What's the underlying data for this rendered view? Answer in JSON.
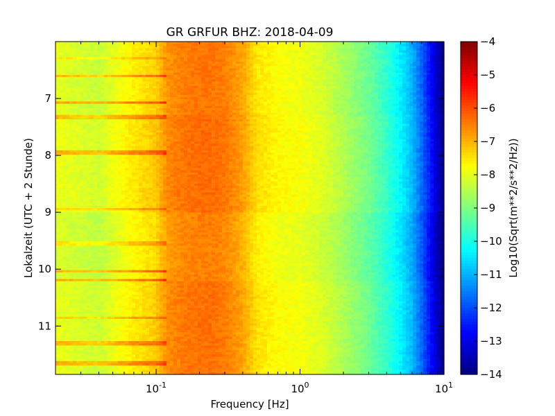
{
  "chart_data": {
    "type": "heatmap",
    "title": "GR GRFUR BHZ: 2018-04-09",
    "xlabel": "Frequency [Hz]",
    "ylabel": "Lokalzeit (UTC + 2 Stunde)",
    "x_scale": "log",
    "xlim": [
      0.02,
      10
    ],
    "ylim": [
      11.85,
      6.0
    ],
    "y_inverted": true,
    "x_ticks": [
      {
        "value": 0.1,
        "base": "10",
        "exp": "-1"
      },
      {
        "value": 1,
        "base": "10",
        "exp": "0"
      },
      {
        "value": 10,
        "base": "10",
        "exp": "1"
      }
    ],
    "y_ticks": [
      {
        "value": 7,
        "label": "7"
      },
      {
        "value": 8,
        "label": "8"
      },
      {
        "value": 9,
        "label": "9"
      },
      {
        "value": 10,
        "label": "10"
      },
      {
        "value": 11,
        "label": "11"
      }
    ],
    "colorbar": {
      "label": "Log10(Sqrt(m**2/s**2/Hz))",
      "colormap": "jet",
      "range": [
        -14,
        -4
      ],
      "ticks": [
        {
          "value": -4,
          "label": "−4"
        },
        {
          "value": -5,
          "label": "−5"
        },
        {
          "value": -6,
          "label": "−6"
        },
        {
          "value": -7,
          "label": "−7"
        },
        {
          "value": -8,
          "label": "−8"
        },
        {
          "value": -9,
          "label": "−9"
        },
        {
          "value": -10,
          "label": "−10"
        },
        {
          "value": -11,
          "label": "−11"
        },
        {
          "value": -12,
          "label": "−12"
        },
        {
          "value": -13,
          "label": "−13"
        },
        {
          "value": -14,
          "label": "−14"
        }
      ]
    },
    "spectrum_profile": {
      "frequency_hz": [
        0.02,
        0.04,
        0.06,
        0.08,
        0.1,
        0.12,
        0.15,
        0.2,
        0.25,
        0.3,
        0.4,
        0.5,
        0.7,
        1.0,
        1.5,
        2.0,
        3.0,
        4.0,
        5.0,
        6.0,
        7.0,
        8.0,
        9.0,
        10.0
      ],
      "log10_amplitude": [
        -8.0,
        -8.3,
        -7.8,
        -7.5,
        -7.3,
        -6.7,
        -6.5,
        -6.4,
        -6.4,
        -6.5,
        -6.9,
        -7.5,
        -7.8,
        -7.9,
        -8.2,
        -8.6,
        -9.2,
        -9.8,
        -10.4,
        -11.0,
        -11.8,
        -12.6,
        -13.4,
        -14.0
      ]
    },
    "time_bands": [
      {
        "from": 6.0,
        "to": 7.3,
        "offset": 0.0
      },
      {
        "from": 7.3,
        "to": 9.0,
        "offset": 0.1
      },
      {
        "from": 9.0,
        "to": 10.2,
        "offset": -0.1
      },
      {
        "from": 10.2,
        "to": 11.85,
        "offset": 0.05
      }
    ],
    "transient_rows": [
      {
        "time": 6.3,
        "offset": 0.5
      },
      {
        "time": 6.6,
        "offset": 0.9
      },
      {
        "time": 7.08,
        "offset": 1.2
      },
      {
        "time": 7.33,
        "offset": 0.8
      },
      {
        "time": 7.95,
        "offset": 1.0
      },
      {
        "time": 8.95,
        "offset": 0.6
      },
      {
        "time": 9.55,
        "offset": 0.6
      },
      {
        "time": 10.03,
        "offset": 1.1
      },
      {
        "time": 10.18,
        "offset": 1.2
      },
      {
        "time": 10.85,
        "offset": 0.7
      },
      {
        "time": 11.3,
        "offset": 0.9
      },
      {
        "time": 11.65,
        "offset": 1.0
      }
    ]
  }
}
